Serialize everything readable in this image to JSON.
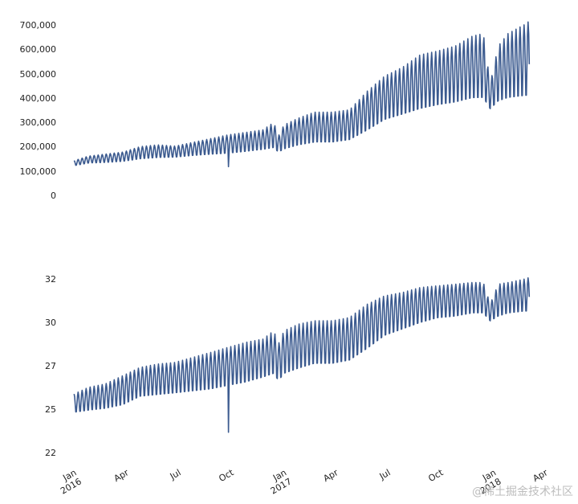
{
  "colors": {
    "line": "#3b5a8f",
    "text": "#222222",
    "watermark": "#bdbdbd"
  },
  "watermark": "@稀土掘金技术社区",
  "chart_data": [
    {
      "type": "line",
      "title": "",
      "xlabel": "",
      "ylabel": "",
      "grid": false,
      "xlim": [
        "2016-01-01",
        "2018-04-01"
      ],
      "ylim": [
        0,
        720000
      ],
      "yticks": [
        0,
        100000,
        200000,
        300000,
        400000,
        500000,
        600000,
        700000
      ],
      "ytick_labels": [
        "0",
        "100,000",
        "200,000",
        "300,000",
        "400,000",
        "500,000",
        "600,000",
        "700,000"
      ],
      "weekly_pattern": true,
      "x": [
        "2016-01-07",
        "2016-02-01",
        "2016-03-01",
        "2016-04-01",
        "2016-05-01",
        "2016-06-01",
        "2016-07-01",
        "2016-08-01",
        "2016-09-01",
        "2016-10-01",
        "2016-11-01",
        "2016-12-01",
        "2016-12-20",
        "2016-12-28",
        "2017-01-07",
        "2017-02-01",
        "2017-03-01",
        "2017-04-01",
        "2017-05-01",
        "2017-06-01",
        "2017-07-01",
        "2017-08-01",
        "2017-09-01",
        "2017-10-01",
        "2017-11-01",
        "2017-12-01",
        "2017-12-20",
        "2018-01-01",
        "2018-01-15",
        "2018-02-01",
        "2018-03-01",
        "2018-03-10"
      ],
      "series": [
        {
          "peak": [
            142000,
            160000,
            168000,
            176000,
            198000,
            205000,
            200000,
            215000,
            230000,
            245000,
            255000,
            265000,
            295000,
            240000,
            285000,
            312000,
            336000,
            336000,
            345000,
            420000,
            480000,
            515000,
            565000,
            580000,
            600000,
            640000,
            650000,
            450000,
            600000,
            650000,
            685000,
            700000
          ],
          "trough": [
            120000,
            130000,
            132000,
            136000,
            145000,
            150000,
            152000,
            158000,
            162000,
            165000,
            172000,
            180000,
            185000,
            170000,
            180000,
            195000,
            205000,
            205000,
            215000,
            250000,
            290000,
            310000,
            330000,
            345000,
            355000,
            370000,
            370000,
            340000,
            360000,
            370000,
            375000,
            375000
          ]
        }
      ],
      "annotations": [
        {
          "x": "2016-10-02",
          "y": 118000,
          "note": "single-day dip"
        }
      ]
    },
    {
      "type": "line",
      "title": "",
      "xlabel": "",
      "ylabel": "",
      "grid": false,
      "xlim": [
        "2016-01-01",
        "2018-04-01"
      ],
      "ylim": [
        21.5,
        33
      ],
      "yticks": [
        22,
        25,
        27,
        30,
        32
      ],
      "ytick_labels": [
        "22",
        "25",
        "27",
        "30",
        "32"
      ],
      "xtick_labels": [
        {
          "date": "2016-01-01",
          "label": "Jan\n2016"
        },
        {
          "date": "2016-04-01",
          "label": "Apr"
        },
        {
          "date": "2016-07-01",
          "label": "Jul"
        },
        {
          "date": "2016-10-01",
          "label": "Oct"
        },
        {
          "date": "2017-01-01",
          "label": "Jan\n2017"
        },
        {
          "date": "2017-04-01",
          "label": "Apr"
        },
        {
          "date": "2017-07-01",
          "label": "Jul"
        },
        {
          "date": "2017-10-01",
          "label": "Oct"
        },
        {
          "date": "2018-01-01",
          "label": "Jan\n2018"
        },
        {
          "date": "2018-04-01",
          "label": "Apr"
        }
      ],
      "weekly_pattern": true,
      "x": [
        "2016-01-07",
        "2016-02-01",
        "2016-03-01",
        "2016-04-01",
        "2016-05-01",
        "2016-06-01",
        "2016-07-01",
        "2016-08-01",
        "2016-09-01",
        "2016-10-01",
        "2016-11-01",
        "2016-12-01",
        "2016-12-20",
        "2016-12-28",
        "2017-01-07",
        "2017-02-01",
        "2017-03-01",
        "2017-04-01",
        "2017-05-01",
        "2017-06-01",
        "2017-07-01",
        "2017-08-01",
        "2017-09-01",
        "2017-10-01",
        "2017-11-01",
        "2017-12-01",
        "2017-12-20",
        "2018-01-01",
        "2018-01-15",
        "2018-02-01",
        "2018-03-01",
        "2018-03-10"
      ],
      "series": [
        {
          "peak": [
            25.6,
            26.0,
            26.2,
            26.7,
            27.2,
            27.4,
            27.5,
            27.8,
            28.1,
            28.4,
            28.7,
            28.9,
            29.4,
            28.6,
            29.4,
            29.8,
            30.0,
            30.0,
            30.2,
            31.0,
            31.5,
            31.7,
            32.0,
            32.1,
            32.2,
            32.3,
            32.3,
            31.0,
            32.2,
            32.3,
            32.5,
            32.6
          ],
          "trough": [
            24.4,
            24.5,
            24.6,
            24.8,
            25.3,
            25.4,
            25.5,
            25.6,
            25.7,
            25.9,
            26.1,
            26.4,
            26.6,
            26.2,
            26.6,
            26.9,
            27.2,
            27.2,
            27.4,
            28.1,
            28.9,
            29.3,
            29.7,
            30.0,
            30.1,
            30.3,
            30.3,
            29.9,
            30.1,
            30.3,
            30.4,
            30.4
          ]
        }
      ],
      "annotations": [
        {
          "x": "2016-10-02",
          "y": 23.3,
          "note": "single-day dip"
        }
      ]
    }
  ]
}
